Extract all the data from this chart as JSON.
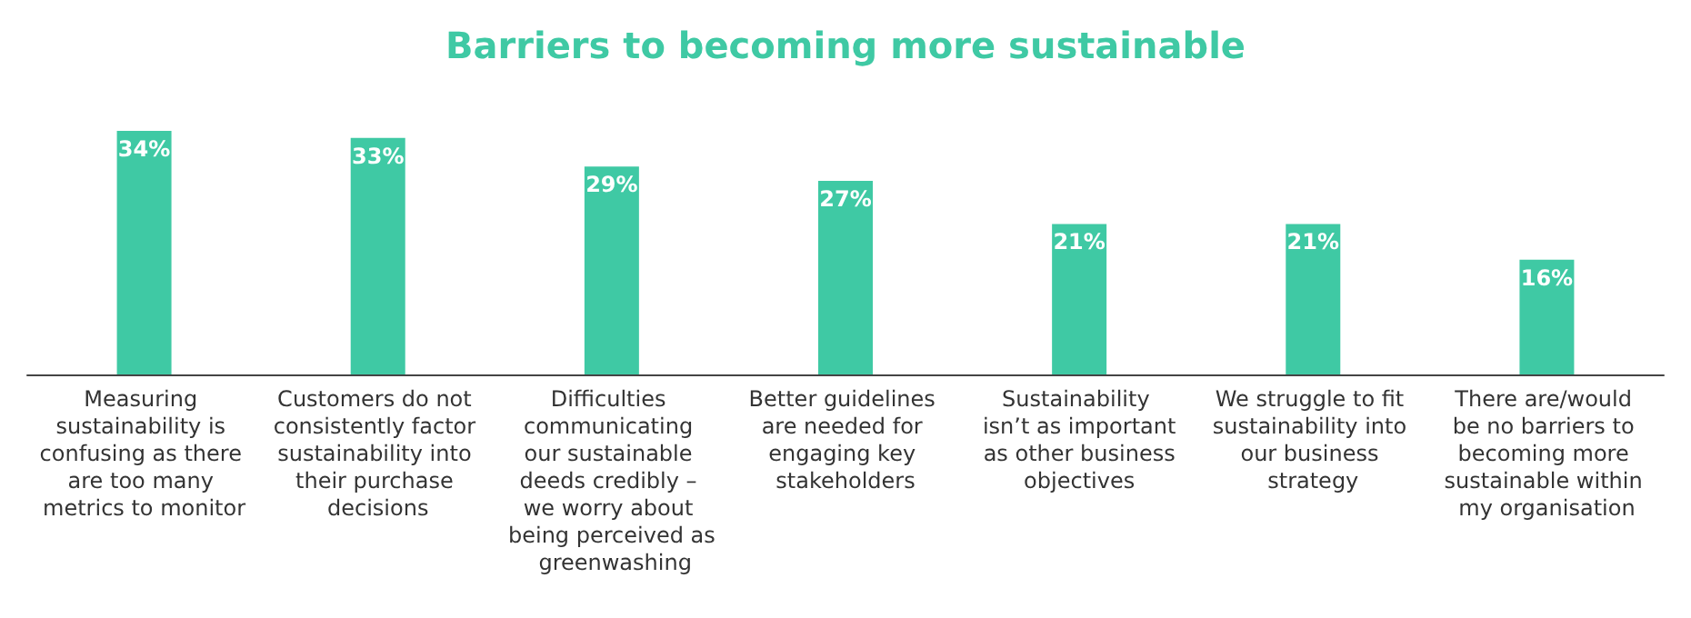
{
  "chart_data": {
    "type": "bar",
    "title": "Barriers to becoming more sustainable",
    "categories": [
      "Measuring sustainability is confusing as there are too many metrics to monitor",
      "Customers do not consistently factor sustainability into their purchase decisions",
      "Difficulties communicating our sustainable deeds credibly – we worry about being perceived as greenwashing",
      "Better guidelines are needed for engaging key stakeholders",
      "Sustainability isn’t as important as other business objectives",
      "We struggle to fit sustainability into our business strategy",
      "There are/would be no barriers to becoming more sustainable within my organisation"
    ],
    "values": [
      34,
      33,
      29,
      27,
      21,
      21,
      16
    ],
    "value_labels": [
      "34%",
      "33%",
      "29%",
      "27%",
      "21%",
      "21%",
      "16%"
    ],
    "color": "#3fc9a4"
  }
}
